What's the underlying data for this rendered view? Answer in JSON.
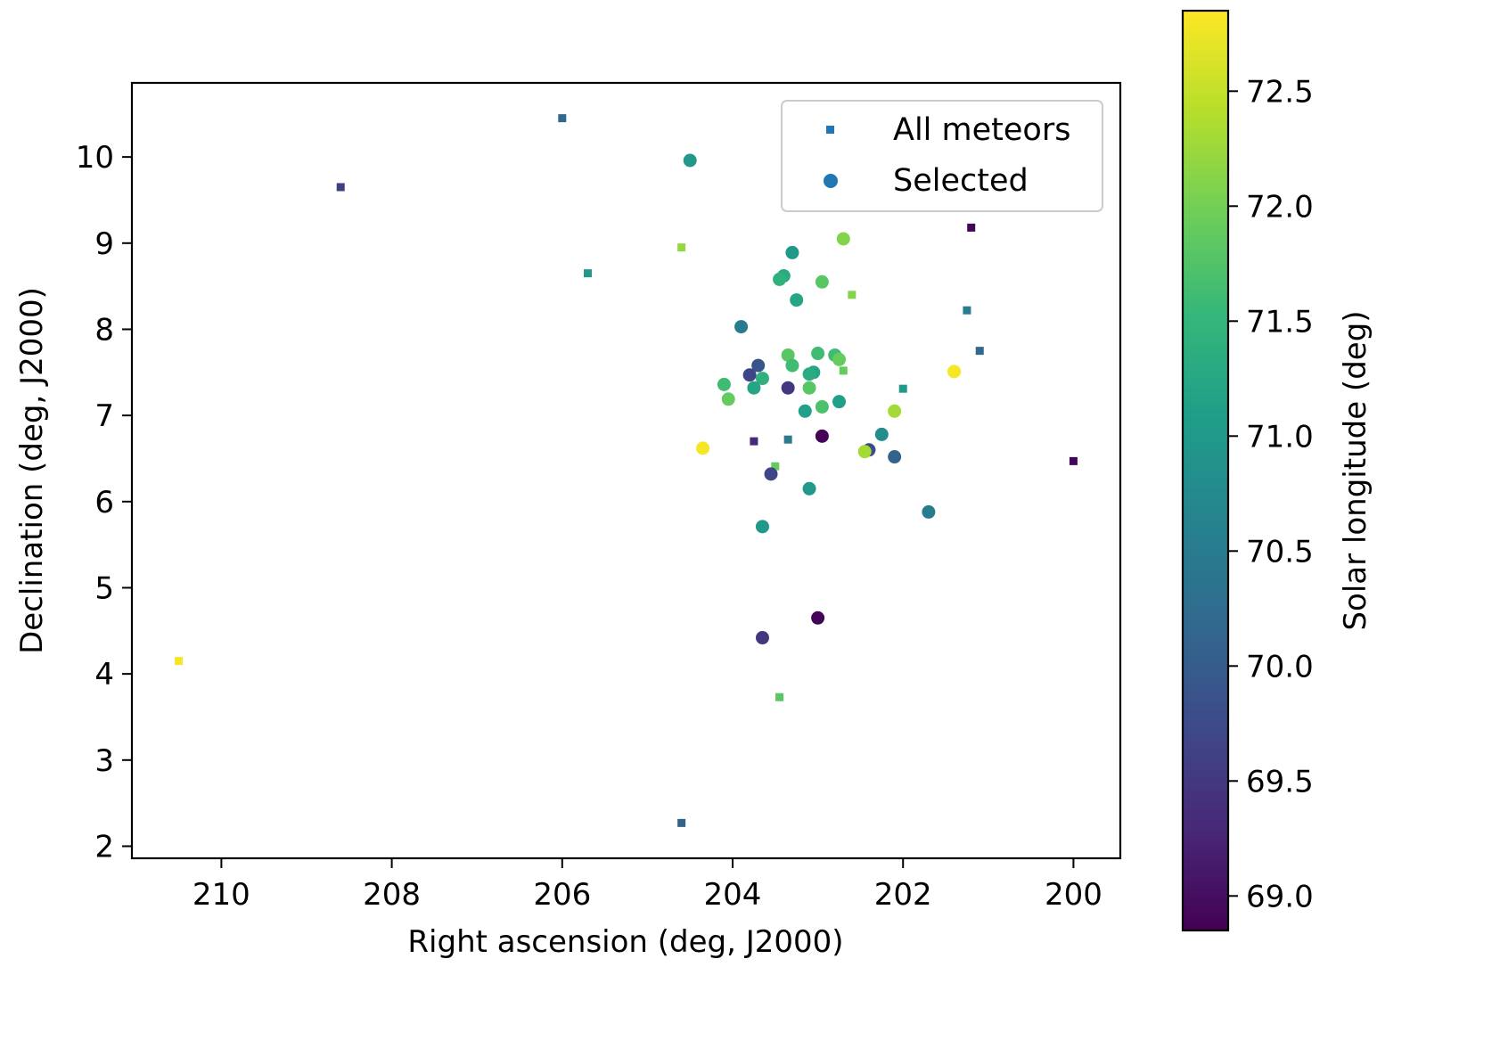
{
  "chart_data": {
    "type": "scatter",
    "xlabel": "Right ascension (deg, J2000)",
    "ylabel": "Declination (deg, J2000)",
    "xlim": [
      211.05,
      199.45
    ],
    "ylim": [
      1.86,
      10.86
    ],
    "x_inverted": true,
    "xticks": [
      210,
      208,
      206,
      204,
      202,
      200
    ],
    "yticks": [
      2,
      3,
      4,
      5,
      6,
      7,
      8,
      9,
      10
    ],
    "grid": false,
    "legend": {
      "placement": "upper right",
      "entries": [
        {
          "label": "All meteors",
          "marker": "square"
        },
        {
          "label": "Selected",
          "marker": "circle"
        }
      ],
      "marker_color": "#1f77b4"
    },
    "colorbar": {
      "label": "Solar longitude (deg)",
      "colormap": "viridis",
      "range": [
        68.85,
        72.85
      ],
      "ticks": [
        69.0,
        69.5,
        70.0,
        70.5,
        71.0,
        71.5,
        72.0,
        72.5
      ],
      "tick_labels": [
        "69.0",
        "69.5",
        "70.0",
        "70.5",
        "71.0",
        "71.5",
        "72.0",
        "72.5"
      ]
    },
    "series": [
      {
        "name": "All meteors",
        "marker": "square",
        "points": [
          {
            "x": 206.0,
            "y": 10.45,
            "c": 70.2
          },
          {
            "x": 208.6,
            "y": 9.65,
            "c": 69.6
          },
          {
            "x": 205.7,
            "y": 8.65,
            "c": 71.0
          },
          {
            "x": 204.6,
            "y": 8.95,
            "c": 72.2
          },
          {
            "x": 201.2,
            "y": 9.18,
            "c": 68.9
          },
          {
            "x": 202.6,
            "y": 8.4,
            "c": 72.1
          },
          {
            "x": 201.25,
            "y": 8.22,
            "c": 70.5
          },
          {
            "x": 201.1,
            "y": 7.75,
            "c": 70.2
          },
          {
            "x": 202.7,
            "y": 7.52,
            "c": 71.9
          },
          {
            "x": 202.0,
            "y": 7.31,
            "c": 71.0
          },
          {
            "x": 203.75,
            "y": 6.7,
            "c": 69.3
          },
          {
            "x": 203.35,
            "y": 6.72,
            "c": 70.5
          },
          {
            "x": 203.5,
            "y": 6.41,
            "c": 71.9
          },
          {
            "x": 200.0,
            "y": 6.47,
            "c": 68.9
          },
          {
            "x": 210.5,
            "y": 4.15,
            "c": 72.8
          },
          {
            "x": 203.45,
            "y": 3.73,
            "c": 71.8
          },
          {
            "x": 204.6,
            "y": 2.27,
            "c": 70.1
          }
        ]
      },
      {
        "name": "Selected",
        "marker": "circle",
        "points": [
          {
            "x": 204.5,
            "y": 9.96,
            "c": 71.0
          },
          {
            "x": 203.3,
            "y": 8.89,
            "c": 71.0
          },
          {
            "x": 202.7,
            "y": 9.05,
            "c": 72.1
          },
          {
            "x": 203.4,
            "y": 8.62,
            "c": 71.3
          },
          {
            "x": 203.45,
            "y": 8.58,
            "c": 71.4
          },
          {
            "x": 202.95,
            "y": 8.55,
            "c": 71.8
          },
          {
            "x": 203.25,
            "y": 8.34,
            "c": 71.2
          },
          {
            "x": 203.9,
            "y": 8.03,
            "c": 70.5
          },
          {
            "x": 203.35,
            "y": 7.7,
            "c": 71.8
          },
          {
            "x": 203.0,
            "y": 7.72,
            "c": 71.6
          },
          {
            "x": 202.8,
            "y": 7.7,
            "c": 71.6
          },
          {
            "x": 202.75,
            "y": 7.65,
            "c": 71.9
          },
          {
            "x": 203.3,
            "y": 7.58,
            "c": 71.6
          },
          {
            "x": 203.05,
            "y": 7.5,
            "c": 71.2
          },
          {
            "x": 203.1,
            "y": 7.48,
            "c": 71.3
          },
          {
            "x": 203.7,
            "y": 7.58,
            "c": 69.9
          },
          {
            "x": 203.8,
            "y": 7.47,
            "c": 69.7
          },
          {
            "x": 203.65,
            "y": 7.43,
            "c": 71.4
          },
          {
            "x": 204.1,
            "y": 7.36,
            "c": 71.6
          },
          {
            "x": 203.75,
            "y": 7.32,
            "c": 71.2
          },
          {
            "x": 203.35,
            "y": 7.32,
            "c": 69.5
          },
          {
            "x": 203.1,
            "y": 7.32,
            "c": 71.8
          },
          {
            "x": 204.05,
            "y": 7.19,
            "c": 71.9
          },
          {
            "x": 202.75,
            "y": 7.16,
            "c": 71.1
          },
          {
            "x": 202.95,
            "y": 7.1,
            "c": 71.7
          },
          {
            "x": 203.15,
            "y": 7.05,
            "c": 71.1
          },
          {
            "x": 202.1,
            "y": 7.05,
            "c": 72.3
          },
          {
            "x": 201.4,
            "y": 7.51,
            "c": 72.8
          },
          {
            "x": 204.35,
            "y": 6.62,
            "c": 72.8
          },
          {
            "x": 202.95,
            "y": 6.76,
            "c": 68.9
          },
          {
            "x": 202.25,
            "y": 6.78,
            "c": 70.8
          },
          {
            "x": 202.4,
            "y": 6.6,
            "c": 69.8
          },
          {
            "x": 202.45,
            "y": 6.58,
            "c": 72.3
          },
          {
            "x": 202.1,
            "y": 6.52,
            "c": 70.1
          },
          {
            "x": 203.55,
            "y": 6.32,
            "c": 69.7
          },
          {
            "x": 203.1,
            "y": 6.15,
            "c": 71.0
          },
          {
            "x": 201.7,
            "y": 5.88,
            "c": 70.5
          },
          {
            "x": 203.65,
            "y": 5.71,
            "c": 71.0
          },
          {
            "x": 203.0,
            "y": 4.65,
            "c": 68.9
          },
          {
            "x": 203.65,
            "y": 4.42,
            "c": 69.5
          }
        ]
      }
    ]
  }
}
